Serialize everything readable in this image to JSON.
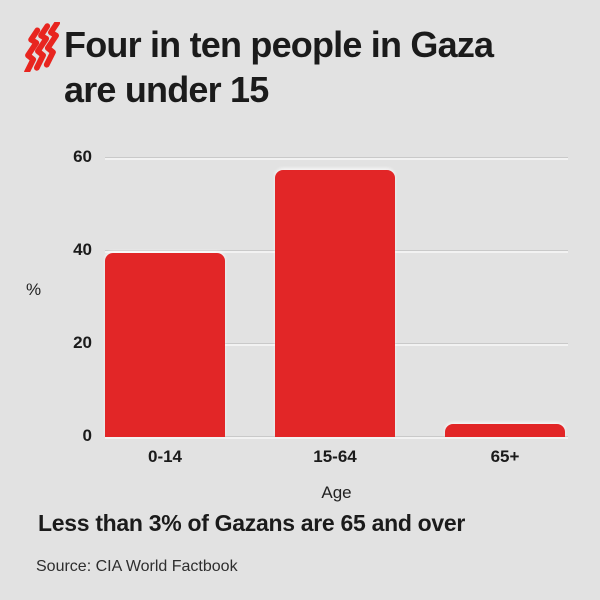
{
  "header": {
    "logo_icon": "sbs-logo",
    "title": "Four in ten people in Gaza are under 15"
  },
  "chart_data": {
    "type": "bar",
    "categories": [
      "0-14",
      "15-64",
      "65+"
    ],
    "values": [
      39.6,
      57.5,
      2.9
    ],
    "title": "Four in ten people in Gaza are under 15",
    "xlabel": "Age",
    "ylabel": "%",
    "yticks": [
      0,
      20,
      40,
      60
    ],
    "ylim": [
      0,
      62
    ],
    "grid": true,
    "legend": "none",
    "bar_color": "#e22627"
  },
  "footer": {
    "subtitle": "Less than 3% of Gazans are 65 and over",
    "source": "Source: CIA World Factbook"
  },
  "colors": {
    "background": "#e2e2e2",
    "bar_red": "#e22627",
    "logo_red": "#e8251f",
    "text_dark": "#1b1b1b",
    "gridline": "#c9c9c9"
  }
}
